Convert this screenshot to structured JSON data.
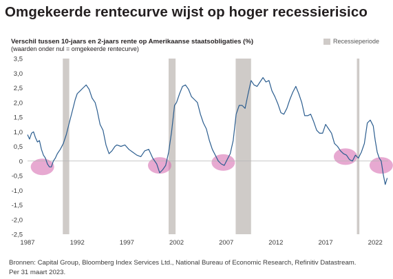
{
  "header": {
    "title": "Omgekeerde rentecurve wijst op hoger recessierisico",
    "subtitle": "Verschil tussen 10-jaars en 2-jaars rente op Amerikaanse staatsobligaties (%)",
    "subnote": "(waarden onder nul = omgekeerde rentecurve)"
  },
  "legend": {
    "label": "Recessieperiode",
    "color": "#cfcbc8"
  },
  "footer": {
    "source_line1": "Bronnen: Capital Group, Bloomberg Index Services Ltd., National Bureau of Economic Research, Refinitiv Datastream.",
    "source_line2": "Per 31 maart 2023."
  },
  "chart_data": {
    "type": "line",
    "xlim": [
      1987,
      2023.3
    ],
    "ylim": [
      -2.5,
      3.5
    ],
    "y_ticks": [
      "3,5",
      "3,0",
      "2,5",
      "2,0",
      "1,5",
      "1,0",
      "0,5",
      "0",
      "-0,5",
      "-1,0",
      "-1,5",
      "-2,0",
      "-2,5"
    ],
    "y_tick_values": [
      3.5,
      3.0,
      2.5,
      2.0,
      1.5,
      1.0,
      0.5,
      0,
      -0.5,
      -1.0,
      -1.5,
      -2.0,
      -2.5
    ],
    "x_ticks": [
      "1987",
      "1992",
      "1997",
      "2002",
      "2007",
      "2012",
      "2017",
      "2022"
    ],
    "x_tick_values": [
      1987,
      1992,
      1997,
      2002,
      2007,
      2012,
      2017,
      2022
    ],
    "grid": false,
    "line_color": "#2b5d8f",
    "recessions": [
      [
        1990.55,
        1991.2
      ],
      [
        2001.2,
        2001.9
      ],
      [
        2007.95,
        2009.5
      ],
      [
        2020.15,
        2020.4
      ]
    ],
    "highlight_color": "#d76fb3",
    "inversion_highlights": [
      [
        1988.5,
        -0.2
      ],
      [
        2000.3,
        -0.15
      ],
      [
        2006.7,
        -0.05
      ],
      [
        2019.0,
        0.15
      ],
      [
        2022.6,
        -0.15
      ]
    ],
    "series": [
      {
        "x": [
          1987.0,
          1987.2,
          1987.4,
          1987.6,
          1987.8,
          1988.0,
          1988.2,
          1988.4,
          1988.6,
          1988.8,
          1989.0,
          1989.2,
          1989.4,
          1989.6,
          1989.8,
          1990.0,
          1990.3,
          1990.6,
          1990.9,
          1991.2,
          1991.5,
          1991.8,
          1992.0,
          1992.3,
          1992.6,
          1992.9,
          1993.2,
          1993.5,
          1993.8,
          1994.0,
          1994.3,
          1994.6,
          1994.9,
          1995.2,
          1995.5,
          1995.8,
          1996.0,
          1996.4,
          1996.8,
          1997.2,
          1997.6,
          1998.0,
          1998.4,
          1998.8,
          1999.2,
          1999.6,
          2000.0,
          2000.3,
          2000.6,
          2000.9,
          2001.2,
          2001.5,
          2001.8,
          2002.0,
          2002.3,
          2002.6,
          2002.9,
          2003.2,
          2003.5,
          2003.8,
          2004.1,
          2004.4,
          2004.7,
          2005.0,
          2005.3,
          2005.6,
          2005.9,
          2006.2,
          2006.5,
          2006.8,
          2007.1,
          2007.4,
          2007.7,
          2008.0,
          2008.3,
          2008.6,
          2008.9,
          2009.2,
          2009.5,
          2009.8,
          2010.1,
          2010.4,
          2010.7,
          2011.0,
          2011.3,
          2011.6,
          2011.9,
          2012.2,
          2012.5,
          2012.8,
          2013.1,
          2013.4,
          2013.7,
          2014.0,
          2014.3,
          2014.6,
          2014.9,
          2015.2,
          2015.5,
          2015.8,
          2016.1,
          2016.4,
          2016.7,
          2017.0,
          2017.3,
          2017.6,
          2017.9,
          2018.2,
          2018.5,
          2018.8,
          2019.1,
          2019.4,
          2019.7,
          2020.0,
          2020.3,
          2020.6,
          2020.9,
          2021.2,
          2021.5,
          2021.8,
          2022.0,
          2022.2,
          2022.4,
          2022.6,
          2022.8,
          2023.0,
          2023.2
        ],
        "y": [
          0.9,
          0.75,
          0.95,
          1.0,
          0.8,
          0.65,
          0.7,
          0.4,
          0.2,
          0.1,
          -0.1,
          -0.2,
          -0.2,
          0.0,
          0.1,
          0.25,
          0.4,
          0.6,
          0.9,
          1.3,
          1.7,
          2.1,
          2.3,
          2.4,
          2.5,
          2.6,
          2.45,
          2.15,
          2.0,
          1.75,
          1.25,
          1.05,
          0.55,
          0.25,
          0.35,
          0.5,
          0.55,
          0.5,
          0.55,
          0.4,
          0.3,
          0.2,
          0.15,
          0.35,
          0.4,
          0.1,
          -0.1,
          -0.4,
          -0.3,
          -0.15,
          0.3,
          1.0,
          1.9,
          2.0,
          2.3,
          2.55,
          2.6,
          2.45,
          2.2,
          2.1,
          2.0,
          1.6,
          1.3,
          1.1,
          0.7,
          0.4,
          0.2,
          0.0,
          -0.1,
          -0.15,
          0.05,
          0.25,
          0.7,
          1.6,
          1.9,
          1.9,
          1.8,
          2.3,
          2.75,
          2.6,
          2.55,
          2.7,
          2.85,
          2.7,
          2.75,
          2.4,
          2.2,
          1.95,
          1.65,
          1.6,
          1.8,
          2.1,
          2.35,
          2.55,
          2.3,
          2.0,
          1.55,
          1.55,
          1.6,
          1.35,
          1.05,
          0.95,
          0.95,
          1.25,
          1.1,
          0.95,
          0.6,
          0.5,
          0.35,
          0.25,
          0.2,
          0.05,
          0.0,
          0.2,
          0.1,
          0.3,
          0.6,
          1.3,
          1.4,
          1.2,
          0.7,
          0.3,
          0.1,
          0.0,
          -0.45,
          -0.8,
          -0.58
        ]
      }
    ]
  }
}
